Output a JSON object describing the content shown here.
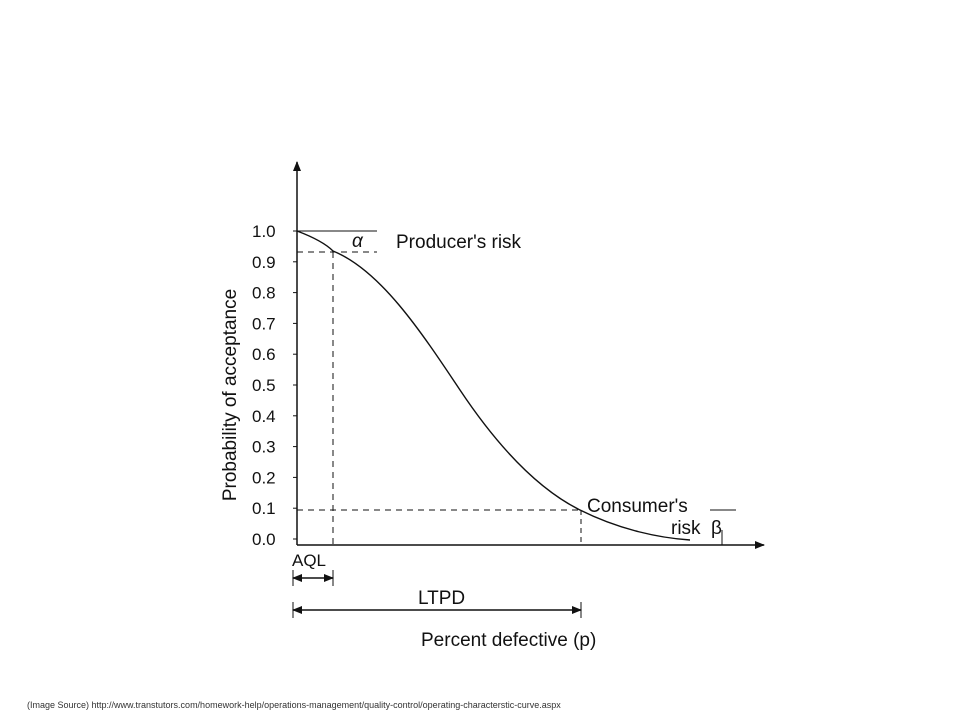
{
  "figure": {
    "y_axis_label": "Probability of acceptance",
    "x_axis_label": "Percent defective (p)",
    "y_ticks": [
      "1.0",
      "0.9",
      "0.8",
      "0.7",
      "0.6",
      "0.5",
      "0.4",
      "0.3",
      "0.2",
      "0.1",
      "0.0"
    ],
    "y_tick_values": [
      1.0,
      0.9,
      0.8,
      0.7,
      0.6,
      0.5,
      0.4,
      0.3,
      0.2,
      0.1,
      0.0
    ],
    "alpha_symbol": "α",
    "producers_risk_label": "Producer's risk",
    "consumers_risk_line1": "Consumer's",
    "consumers_risk_line2": "risk",
    "beta_symbol": "β",
    "aql_label": "AQL",
    "ltpd_label": "LTPD"
  },
  "caption": "(Image Source) http://www.transtutors.com/homework-help/operations-management/quality-control/operating-characterstic-curve.aspx"
}
